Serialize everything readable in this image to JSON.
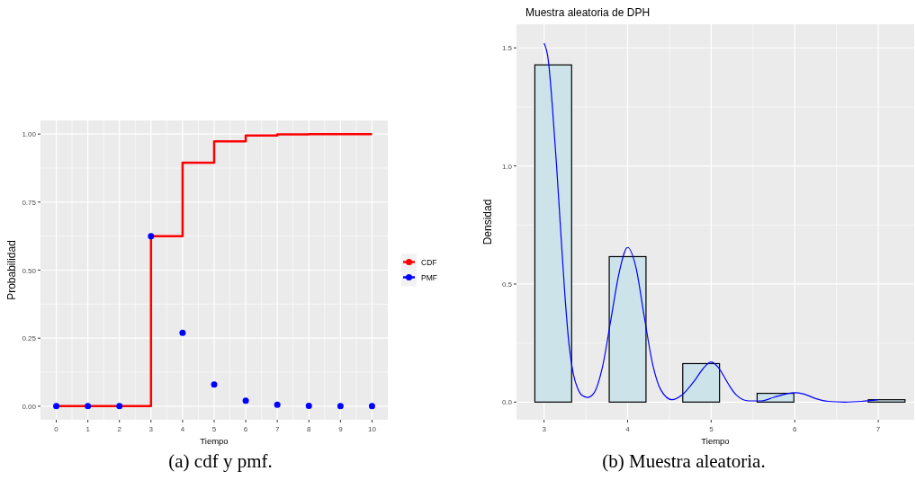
{
  "chart_data": [
    {
      "type": "step",
      "xlabel": "Tiempo",
      "ylabel": "Probabilidad",
      "x": [
        0,
        1,
        2,
        3,
        4,
        5,
        6,
        7,
        8,
        9,
        10
      ],
      "xlim": [
        -0.5,
        10.5
      ],
      "xticks": [
        0,
        1,
        2,
        3,
        4,
        5,
        6,
        7,
        8,
        9,
        10
      ],
      "ylim": [
        -0.05,
        1.05
      ],
      "yticks": [
        {
          "value": 0,
          "label": "0.00"
        },
        {
          "value": 0.25,
          "label": "0.25"
        },
        {
          "value": 0.5,
          "label": "0.50"
        },
        {
          "value": 0.75,
          "label": "0.75"
        },
        {
          "value": 1,
          "label": "1.00"
        }
      ],
      "grid": true,
      "legend": "right",
      "annotations": [
        "(a) cdf y pmf."
      ],
      "series": [
        {
          "name": "CDF",
          "type": "step",
          "color": "#ff0000",
          "values": [
            0,
            0,
            0,
            0.625,
            0.895,
            0.973,
            0.995,
            0.999,
            1,
            1,
            1
          ]
        },
        {
          "name": "PMF",
          "type": "scatter",
          "color": "#0000ff",
          "marker": "circle",
          "values": [
            0,
            0,
            0,
            0.625,
            0.27,
            0.08,
            0.02,
            0.005,
            0.001,
            0,
            0
          ]
        }
      ]
    },
    {
      "type": "histogram",
      "title": "Muestra aleatoria de DPH",
      "xlabel": "Tiempo",
      "ylabel": "Densidad",
      "bins": [
        2.89,
        3.33,
        3.78,
        4.22,
        4.66,
        5.1,
        5.55,
        5.99,
        6.88,
        7.32
      ],
      "values": [
        1.428,
        0,
        0.616,
        0,
        0.163,
        0,
        0.037,
        0,
        0.01
      ],
      "color": "#cce3ea",
      "xlim": [
        2.67,
        7.43
      ],
      "xticks": [
        3,
        4,
        5,
        6,
        7
      ],
      "ylim": [
        -0.075,
        1.6
      ],
      "yticks": [
        {
          "value": 0,
          "label": "0.0"
        },
        {
          "value": 0.5,
          "label": "0.5"
        },
        {
          "value": 1,
          "label": "1.0"
        },
        {
          "value": 1.5,
          "label": "1.5"
        }
      ],
      "grid": true,
      "annotations": [
        "(b) Muestra aleatoria."
      ],
      "series": [
        {
          "type": "line",
          "color": "#0000ff",
          "x": [
            3,
            3.05,
            3.1,
            3.15,
            3.2,
            3.25,
            3.3,
            3.35,
            3.4,
            3.45,
            3.52,
            3.6,
            3.7,
            3.8,
            3.9,
            4,
            4.1,
            4.2,
            4.3,
            4.4,
            4.53,
            4.65,
            4.8,
            4.9,
            5,
            5.1,
            5.2,
            5.3,
            5.45,
            5.6,
            5.75,
            5.9,
            6,
            6.1,
            6.25,
            6.4,
            6.6,
            6.8,
            7
          ],
          "values": [
            1.52,
            1.45,
            1.25,
            1,
            0.72,
            0.45,
            0.24,
            0.12,
            0.06,
            0.03,
            0.02,
            0.04,
            0.15,
            0.35,
            0.55,
            0.655,
            0.57,
            0.36,
            0.16,
            0.05,
            0.01,
            0.03,
            0.09,
            0.14,
            0.17,
            0.14,
            0.08,
            0.03,
            0.005,
            0.005,
            0.02,
            0.035,
            0.04,
            0.035,
            0.015,
            0.003,
            0,
            0.003,
            0.01
          ]
        }
      ]
    }
  ]
}
